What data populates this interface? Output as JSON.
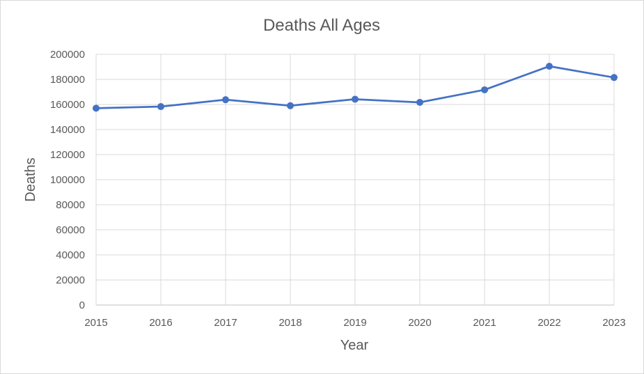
{
  "chart_data": {
    "type": "line",
    "title": "Deaths All Ages",
    "xlabel": "Year",
    "ylabel": "Deaths",
    "x": [
      "2015",
      "2016",
      "2017",
      "2018",
      "2019",
      "2020",
      "2021",
      "2022",
      "2023"
    ],
    "series": [
      {
        "values": [
          157000,
          158300,
          163800,
          159000,
          164200,
          161700,
          171700,
          190500,
          181500
        ],
        "color": "#4472c4"
      }
    ],
    "ylim": [
      0,
      200000
    ],
    "yticks": [
      "0",
      "20000",
      "40000",
      "60000",
      "80000",
      "100000",
      "120000",
      "140000",
      "160000",
      "180000",
      "200000"
    ],
    "grid": true,
    "legend": "none"
  }
}
